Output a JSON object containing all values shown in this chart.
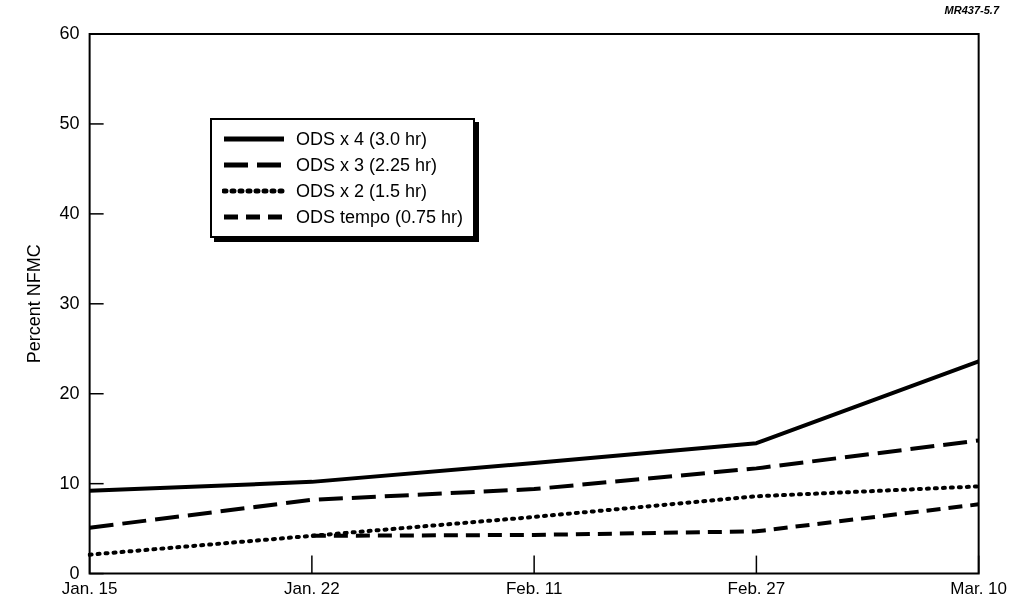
{
  "chart_data": {
    "type": "line",
    "ylabel": "Percent NFMC",
    "annotations": [
      "MR437-5.7"
    ],
    "categories": [
      "Jan. 15",
      "Jan. 22",
      "Feb. 11",
      "Feb. 27",
      "Mar. 10"
    ],
    "ylim": [
      0,
      60
    ],
    "yticks": [
      0,
      10,
      20,
      30,
      40,
      50,
      60
    ],
    "grid": false,
    "legend": "top left",
    "marker": "none",
    "series": [
      {
        "name": "ODS x 4 (3.0 hr)",
        "color": "#000000",
        "line_style": "solid",
        "values": [
          9.2,
          10.2,
          12.3,
          14.5,
          23.6
        ]
      },
      {
        "name": "ODS x 3 (2.25 hr)",
        "color": "#000000",
        "line_style": "longdash",
        "values": [
          5.1,
          8.2,
          9.4,
          11.7,
          14.8
        ]
      },
      {
        "name": "ODS x 2 (1.5 hr)",
        "color": "#000000",
        "line_style": "dotted",
        "values": [
          2.1,
          4.2,
          6.3,
          8.6,
          9.7
        ]
      },
      {
        "name": "ODS tempo (0.75 hr)",
        "color": "#000000",
        "line_style": "dashed",
        "values": [
          null,
          4.2,
          4.3,
          4.7,
          7.7
        ]
      }
    ]
  }
}
